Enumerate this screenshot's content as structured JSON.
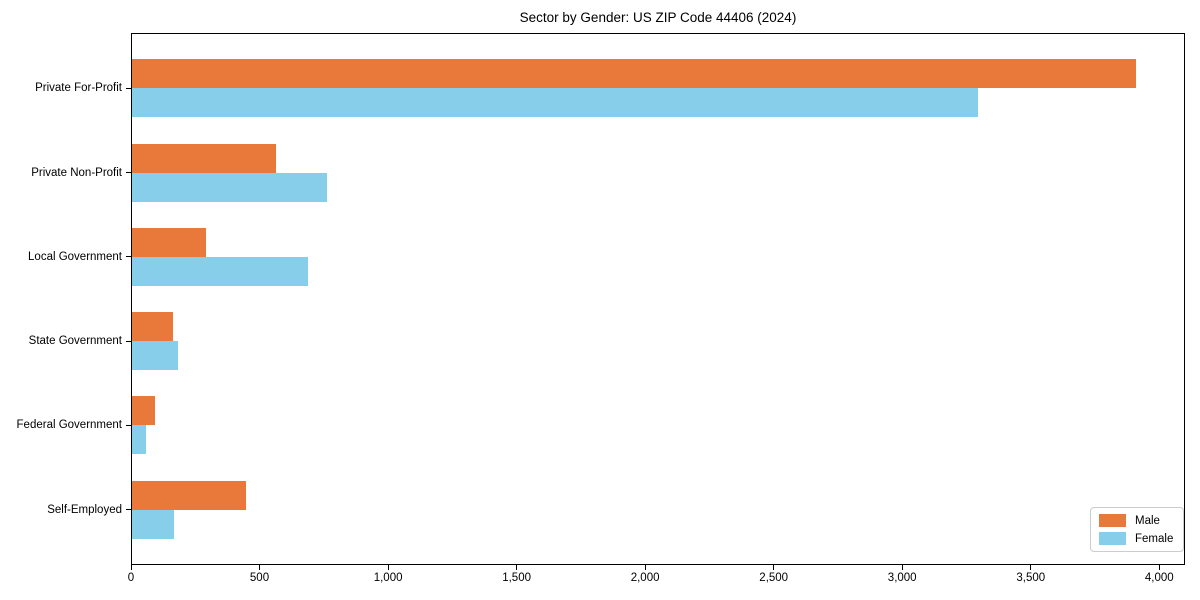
{
  "chart": {
    "title": "Sector by Gender: US ZIP Code 44406 (2024)"
  },
  "chart_data": {
    "type": "bar",
    "orientation": "horizontal",
    "title": "Sector by Gender: US ZIP Code 44406 (2024)",
    "xlabel": "",
    "ylabel": "",
    "categories": [
      "Private For-Profit",
      "Private Non-Profit",
      "Local Government",
      "State Government",
      "Federal Government",
      "Self-Employed"
    ],
    "series": [
      {
        "name": "Male",
        "color": "#e8793a",
        "values": [
          3910,
          565,
          290,
          165,
          93,
          448
        ]
      },
      {
        "name": "Female",
        "color": "#87ceeb",
        "values": [
          3293,
          762,
          688,
          184,
          57,
          166
        ]
      }
    ],
    "xlim": [
      0,
      4100
    ],
    "xticks": [
      0,
      500,
      1000,
      1500,
      2000,
      2500,
      3000,
      3500,
      4000
    ],
    "xtick_labels": [
      "0",
      "500",
      "1,000",
      "1,500",
      "2,000",
      "2,500",
      "3,000",
      "3,500",
      "4,000"
    ],
    "grid": false,
    "legend_position": "lower right",
    "frame": "full-box",
    "colors": {
      "male": "#e8793a",
      "female": "#87ceeb",
      "axis": "#000000",
      "legend_border": "#cccccc",
      "background": "#ffffff"
    }
  }
}
